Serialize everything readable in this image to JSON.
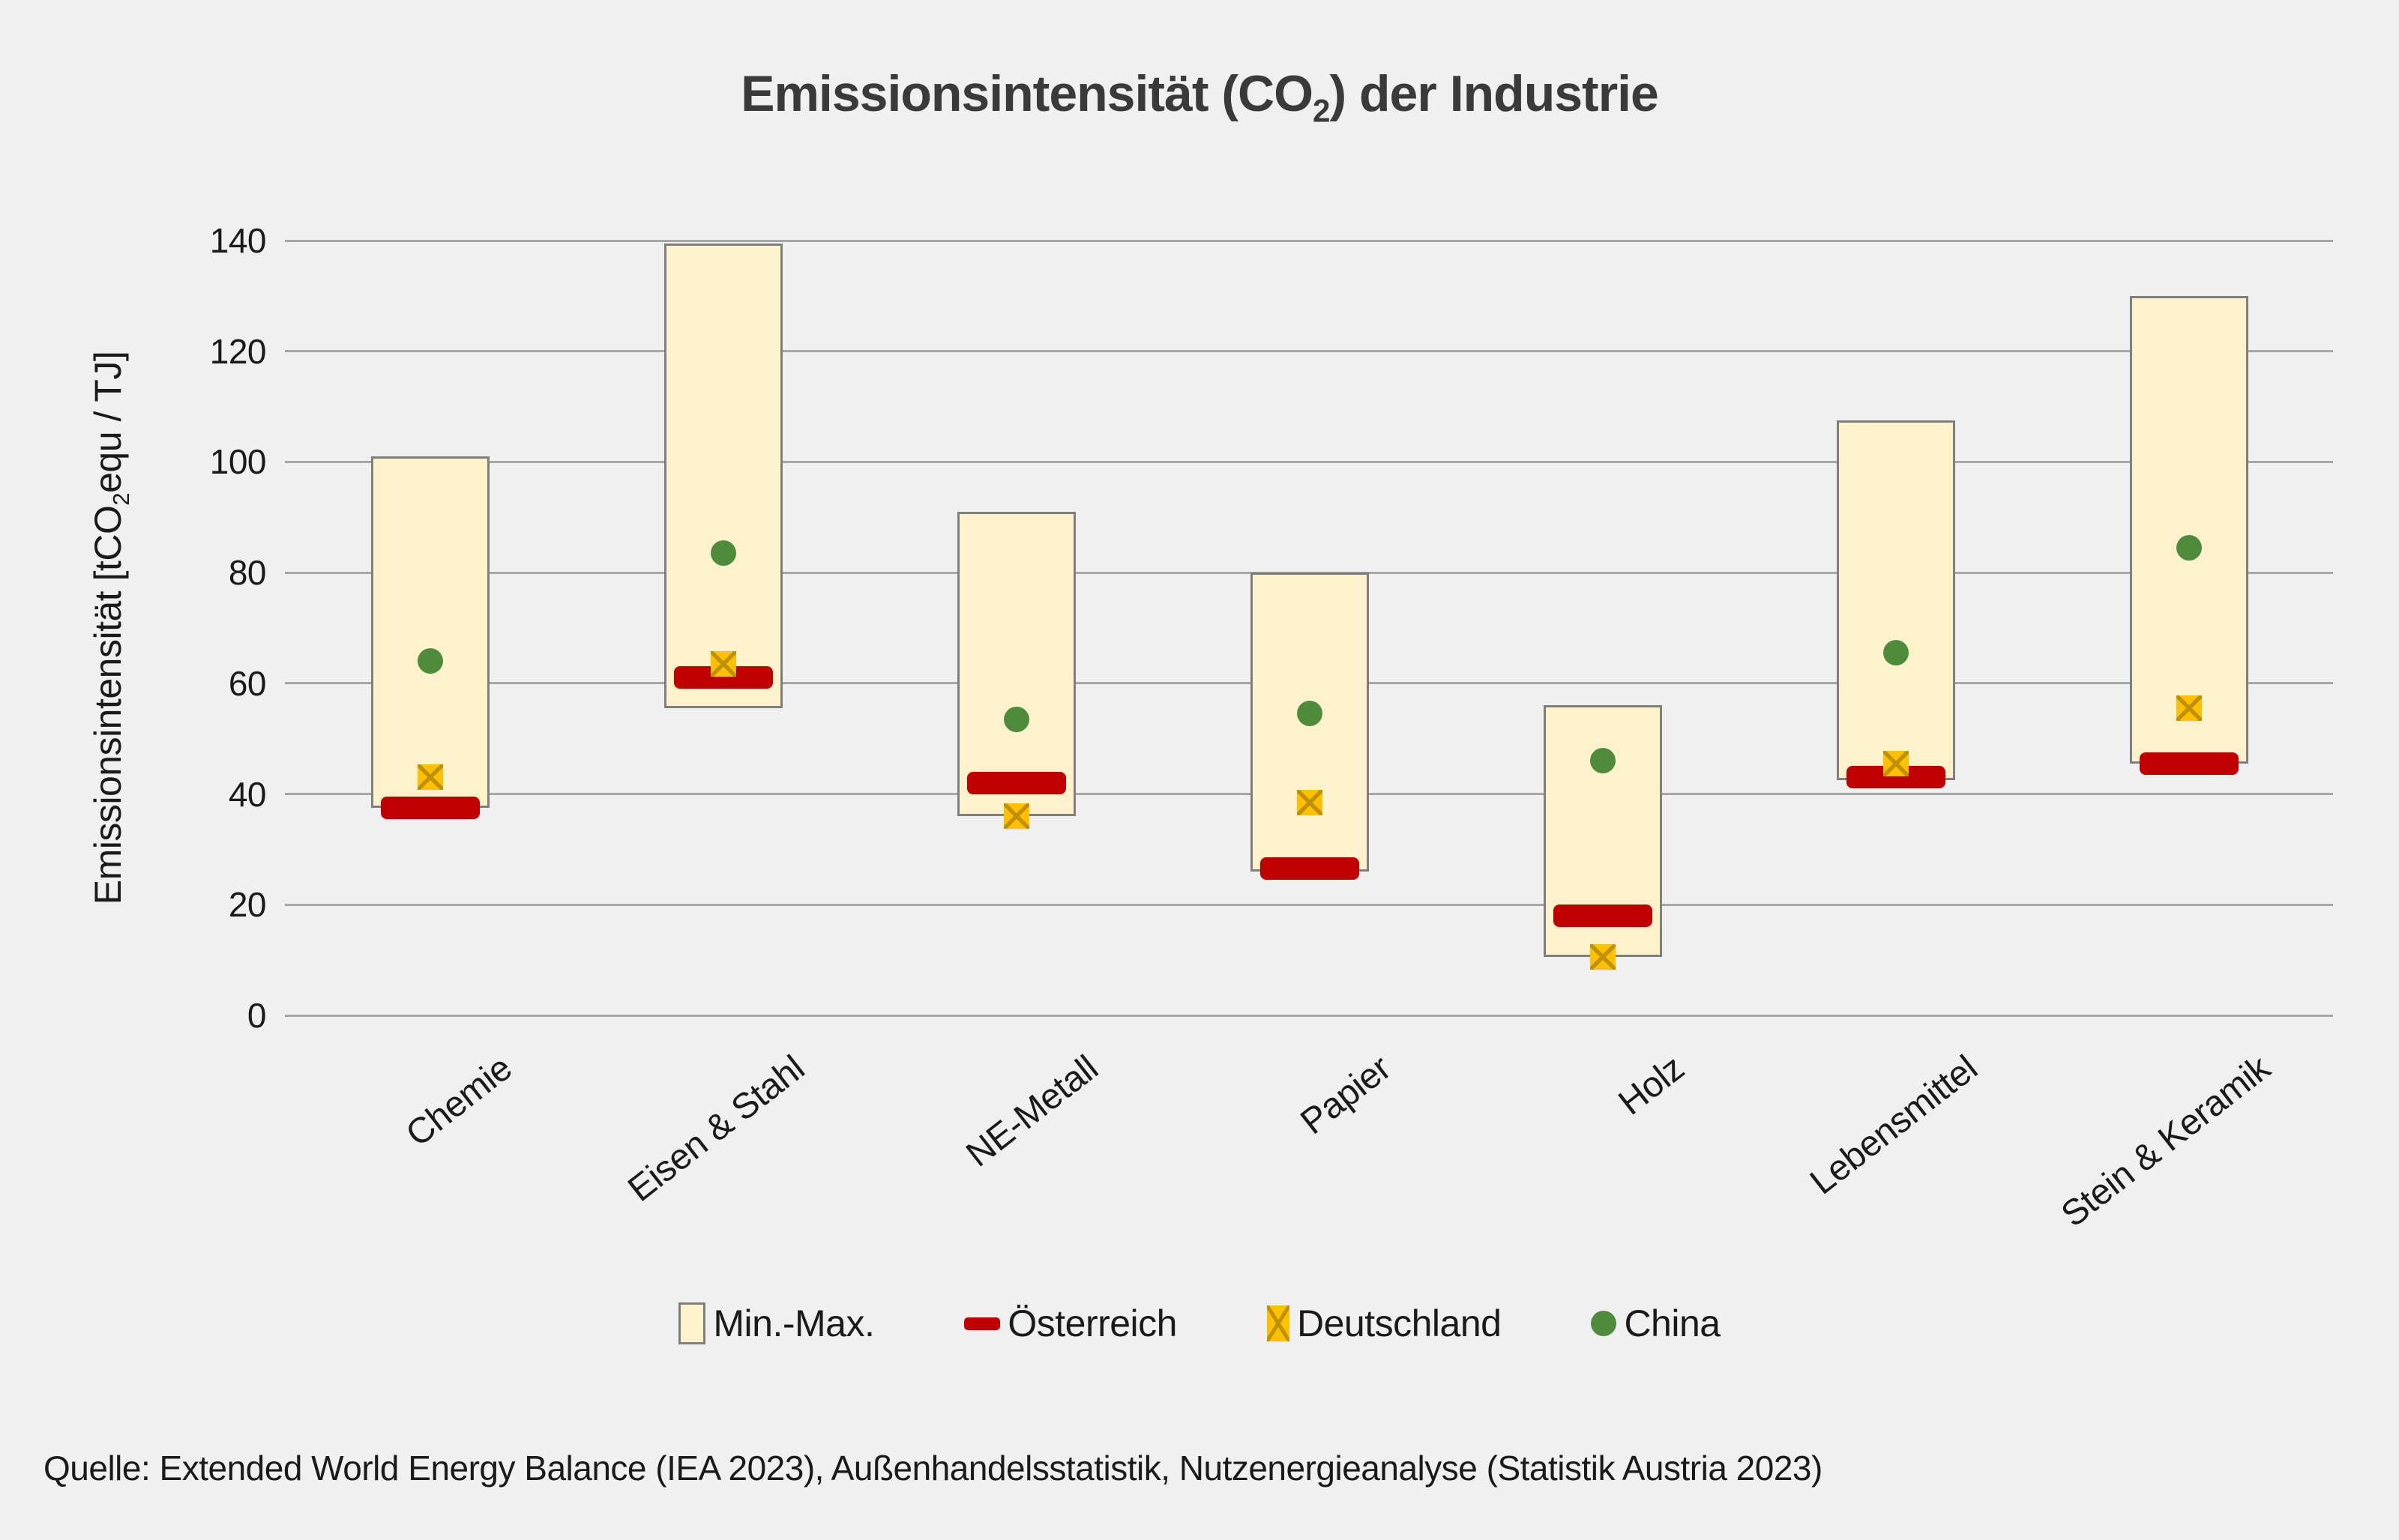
{
  "title": {
    "part1": "Emissionsintensität (CO",
    "sub": "2",
    "part2": ") der Industrie"
  },
  "y_axis_title": {
    "part1": "Emissionsintensität [tCO",
    "sub": "2",
    "part2": "equ / TJ]"
  },
  "colors": {
    "background": "#f0f0f0",
    "range_fill": "#fdf2cc",
    "range_border": "#7f7f7f",
    "austria_red": "#c00000",
    "germany_yellow": "#ffc000",
    "germany_x_stroke": "#bf9000",
    "china_green": "#4e8b3a",
    "gridline": "#a6a6a6",
    "text": "#1a1a1a",
    "title_text": "#3a3a3a"
  },
  "chart_data": {
    "type": "range-bar with markers",
    "title": "Emissionsintensität (CO₂) der Industrie",
    "ylabel": "Emissionsintensität [tCO₂equ / TJ]",
    "ylim": [
      0,
      140
    ],
    "ytick_step": 20,
    "ytick_labels": [
      "0",
      "20",
      "40",
      "60",
      "80",
      "100",
      "120",
      "140"
    ],
    "grid": true,
    "legend_position": "bottom",
    "categories": [
      "Chemie",
      "Eisen & Stahl",
      "NE-Metall",
      "Papier",
      "Holz",
      "Lebensmittel",
      "Stein & Keramik"
    ],
    "series": [
      {
        "name": "Min.-Max.",
        "marker": "range",
        "min": [
          37.5,
          55.5,
          36,
          26,
          10.5,
          42.5,
          45.5
        ],
        "max": [
          101,
          139.5,
          91,
          80,
          56,
          107.5,
          130
        ]
      },
      {
        "name": "Österreich",
        "marker": "bar",
        "values": [
          37.5,
          61,
          42,
          26.5,
          18,
          43,
          45.5
        ]
      },
      {
        "name": "Deutschland",
        "marker": "square-x",
        "values": [
          43,
          63.5,
          36,
          38.5,
          10.5,
          45.5,
          55.5
        ]
      },
      {
        "name": "China",
        "marker": "dot",
        "values": [
          64,
          83.5,
          53.5,
          54.5,
          46,
          65.5,
          84.5
        ]
      }
    ]
  },
  "legend": {
    "items": [
      {
        "swatch": "range",
        "label": "Min.-Max."
      },
      {
        "swatch": "bar",
        "label": "Österreich"
      },
      {
        "swatch": "square-x",
        "label": "Deutschland"
      },
      {
        "swatch": "dot",
        "label": "China"
      }
    ]
  },
  "source": "Quelle: Extended World Energy Balance (IEA 2023), Außenhandelsstatistik, Nutzenergieanalyse (Statistik Austria 2023)"
}
